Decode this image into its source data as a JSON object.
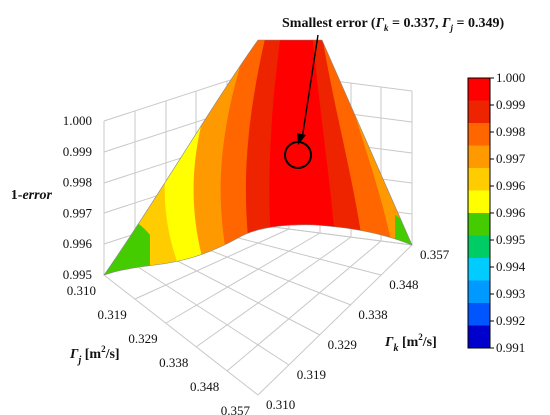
{
  "chart_data": {
    "type": "surface",
    "zlabel": {
      "prefix": "1-",
      "italic": "error"
    },
    "x_axis": {
      "label_symbol": "Γ",
      "label_sub": "k",
      "label_unit_pre": "[m",
      "label_unit_sup": "2",
      "label_unit_post": "/s]",
      "ticks": [
        "0.310",
        "0.319",
        "0.329",
        "0.338",
        "0.348",
        "0.357"
      ]
    },
    "y_axis": {
      "label_symbol": "Γ",
      "label_sub": "j",
      "label_unit_pre": "[m",
      "label_unit_sup": "2",
      "label_unit_post": "/s]",
      "ticks": [
        "0.310",
        "0.319",
        "0.329",
        "0.338",
        "0.348",
        "0.357"
      ]
    },
    "z_axis": {
      "ticks": [
        "0.995",
        "0.996",
        "0.997",
        "0.998",
        "0.999",
        "1.000"
      ],
      "range": [
        0.995,
        1.0
      ]
    },
    "annotation": {
      "text": "Smallest error",
      "paren_open": "(",
      "gk": "Γ",
      "gk_sub": "k",
      "gk_val": " = 0.337, ",
      "gj": "Γ",
      "gj_sub": "j",
      "gj_val": " = 0.349",
      "paren_close": ")",
      "min_point": {
        "gamma_k": 0.337,
        "gamma_j": 0.349
      }
    },
    "colorbar": {
      "labels": [
        "1.000",
        "0.999",
        "0.998",
        "0.997",
        "0.996",
        "0.996",
        "0.995",
        "0.994",
        "0.993",
        "0.992",
        "0.991"
      ],
      "colors": [
        "#ff0000",
        "#ee2400",
        "#ff6600",
        "#ff9900",
        "#ffcc00",
        "#ffff00",
        "#44cc00",
        "#00cc66",
        "#00ccff",
        "#0099ff",
        "#0055ff",
        "#0000cc"
      ]
    }
  }
}
